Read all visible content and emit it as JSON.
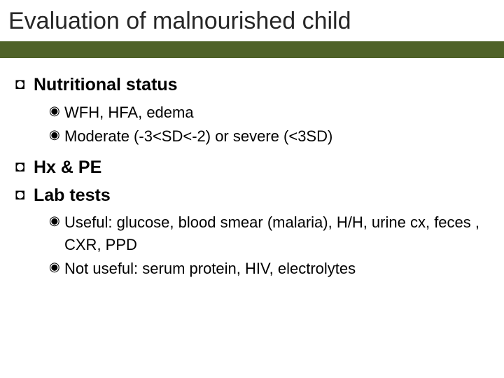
{
  "colors": {
    "accent_bar": "#4f6228",
    "background": "#ffffff",
    "title_color": "#262626",
    "text_color": "#000000"
  },
  "typography": {
    "title_fontsize": 34,
    "lvl1_fontsize": 25,
    "lvl2_fontsize": 22,
    "font_family": "Arial"
  },
  "bullets": {
    "lvl1_glyph": "◘",
    "lvl2_glyph": "◉"
  },
  "title": "Evaluation of malnourished child",
  "items": {
    "i0": {
      "text": "Nutritional status"
    },
    "i0_0": {
      "text": "WFH, HFA, edema"
    },
    "i0_1": {
      "text": "Moderate (-3<SD<-2) or severe (<3SD)"
    },
    "i1": {
      "text": "Hx & PE"
    },
    "i2": {
      "text": "Lab tests"
    },
    "i2_0": {
      "text": "Useful: glucose, blood smear (malaria), H/H, urine cx, feces , CXR, PPD"
    },
    "i2_1": {
      "text": "Not useful: serum protein, HIV, electrolytes"
    }
  }
}
